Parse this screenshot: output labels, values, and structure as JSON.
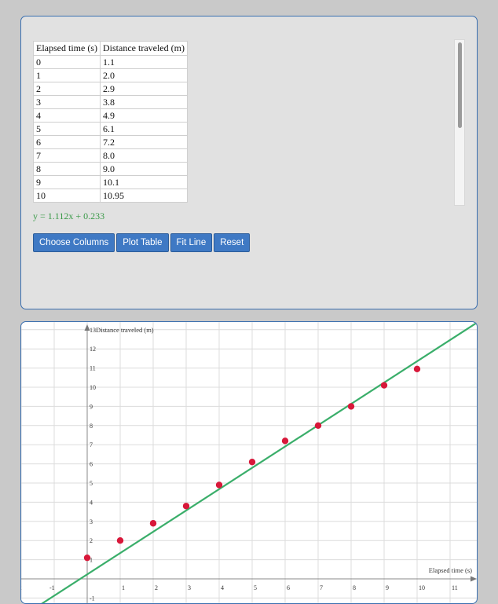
{
  "table": {
    "headers": [
      "Elapsed time (s)",
      "Distance traveled (m)"
    ],
    "rows": [
      [
        "0",
        "1.1"
      ],
      [
        "1",
        "2.0"
      ],
      [
        "2",
        "2.9"
      ],
      [
        "3",
        "3.8"
      ],
      [
        "4",
        "4.9"
      ],
      [
        "5",
        "6.1"
      ],
      [
        "6",
        "7.2"
      ],
      [
        "7",
        "8.0"
      ],
      [
        "8",
        "9.0"
      ],
      [
        "9",
        "10.1"
      ],
      [
        "10",
        "10.95"
      ]
    ]
  },
  "equation": "y = 1.112x + 0.233",
  "buttons": {
    "choose_columns": "Choose Columns",
    "plot_table": "Plot Table",
    "fit_line": "Fit Line",
    "reset": "Reset"
  },
  "chart_data": {
    "type": "scatter",
    "xlabel": "Elapsed time (s)",
    "ylabel": "Distance traveled (m)",
    "x_ticks": [
      -2,
      -1,
      1,
      2,
      3,
      4,
      5,
      6,
      7,
      8,
      9,
      10,
      11
    ],
    "y_ticks": [
      -1,
      1,
      2,
      3,
      4,
      5,
      6,
      7,
      8,
      9,
      10,
      11,
      12,
      13
    ],
    "xlim": [
      -2.5,
      11.9
    ],
    "ylim": [
      -1.3,
      13.2
    ],
    "grid": true,
    "points": [
      [
        0,
        1.1
      ],
      [
        1,
        2.0
      ],
      [
        2,
        2.9
      ],
      [
        3,
        3.8
      ],
      [
        4,
        4.9
      ],
      [
        5,
        6.1
      ],
      [
        6,
        7.2
      ],
      [
        7,
        8.0
      ],
      [
        8,
        9.0
      ],
      [
        9,
        10.1
      ],
      [
        10,
        10.95
      ]
    ],
    "fit_line": {
      "slope": 1.112,
      "intercept": 0.233
    },
    "point_color": "#d8183a",
    "line_color": "#3aae6a"
  }
}
